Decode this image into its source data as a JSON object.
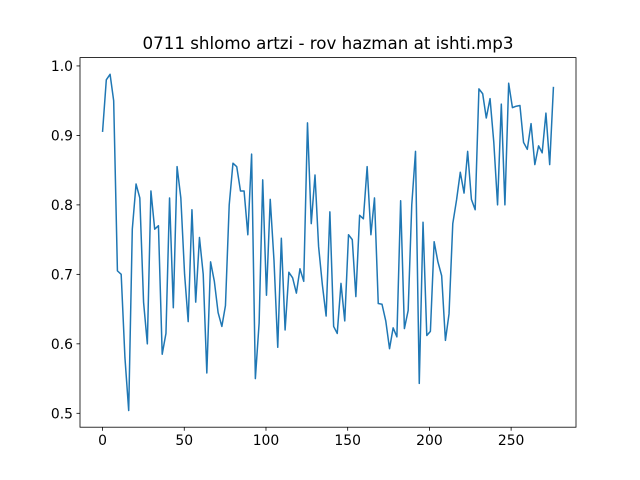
{
  "chart_data": {
    "type": "line",
    "title": "0711 shlomo artzi - rov hazman at ishti.mp3",
    "x": [
      0,
      2.3,
      4.6,
      6.8,
      9.1,
      11.4,
      13.7,
      16,
      18.2,
      20.5,
      22.8,
      25.1,
      27.4,
      29.6,
      31.9,
      34.2,
      36.5,
      38.8,
      41,
      43.3,
      45.6,
      47.9,
      50.2,
      52.4,
      54.7,
      57,
      59.3,
      61.6,
      63.8,
      66.1,
      68.4,
      70.7,
      73,
      75.2,
      77.5,
      79.8,
      82.1,
      84.4,
      86.6,
      88.9,
      91.2,
      93.5,
      95.8,
      98,
      100.3,
      102.6,
      104.9,
      107.2,
      109.4,
      111.7,
      114,
      116.3,
      118.6,
      120.8,
      123.1,
      125.4,
      127.7,
      130,
      132.2,
      134.5,
      136.8,
      139.1,
      141.4,
      143.6,
      145.9,
      148.2,
      150.5,
      152.8,
      155,
      157.3,
      159.6,
      161.9,
      164.2,
      166.4,
      168.7,
      171,
      173.3,
      175.6,
      177.8,
      180.1,
      182.4,
      184.7,
      187,
      189.2,
      191.5,
      193.8,
      196.1,
      198.4,
      200.6,
      202.9,
      205.2,
      207.5,
      209.8,
      212,
      214.3,
      216.6,
      218.9,
      221.2,
      223.4,
      225.7,
      228,
      230.3,
      232.6,
      234.8,
      237.1,
      239.4,
      241.7,
      244,
      246.2,
      248.5,
      250.8,
      253.1,
      255.4,
      257.6,
      259.9,
      262.2,
      264.5,
      266.8,
      269,
      271.3,
      273.6,
      275.9
    ],
    "series": [
      {
        "color": "#1f77b4",
        "values": [
          0.905,
          0.98,
          0.988,
          0.95,
          0.705,
          0.7,
          0.58,
          0.504,
          0.765,
          0.83,
          0.81,
          0.66,
          0.6,
          0.82,
          0.765,
          0.77,
          0.585,
          0.615,
          0.81,
          0.652,
          0.855,
          0.81,
          0.7,
          0.632,
          0.793,
          0.66,
          0.753,
          0.7,
          0.558,
          0.718,
          0.69,
          0.645,
          0.625,
          0.655,
          0.8,
          0.86,
          0.855,
          0.82,
          0.82,
          0.757,
          0.873,
          0.55,
          0.63,
          0.836,
          0.67,
          0.808,
          0.72,
          0.595,
          0.752,
          0.62,
          0.703,
          0.695,
          0.673,
          0.708,
          0.69,
          0.918,
          0.773,
          0.843,
          0.74,
          0.685,
          0.64,
          0.79,
          0.625,
          0.615,
          0.687,
          0.633,
          0.757,
          0.75,
          0.668,
          0.785,
          0.78,
          0.855,
          0.757,
          0.81,
          0.658,
          0.657,
          0.633,
          0.593,
          0.623,
          0.61,
          0.806,
          0.622,
          0.648,
          0.8,
          0.877,
          0.543,
          0.775,
          0.612,
          0.618,
          0.747,
          0.718,
          0.698,
          0.605,
          0.643,
          0.773,
          0.807,
          0.847,
          0.817,
          0.877,
          0.808,
          0.793,
          0.967,
          0.96,
          0.925,
          0.953,
          0.89,
          0.8,
          0.945,
          0.8,
          0.975,
          0.94,
          0.942,
          0.943,
          0.89,
          0.88,
          0.917,
          0.858,
          0.885,
          0.875,
          0.932,
          0.858,
          0.97
        ]
      }
    ],
    "xlim": [
      -13.8,
      289.7
    ],
    "ylim": [
      0.48,
      1.012
    ],
    "xticks": [
      0,
      50,
      100,
      150,
      200,
      250
    ],
    "yticks": [
      0.5,
      0.6,
      0.7,
      0.8,
      0.9,
      {
        "value": 1,
        "label": "1.0"
      }
    ]
  }
}
